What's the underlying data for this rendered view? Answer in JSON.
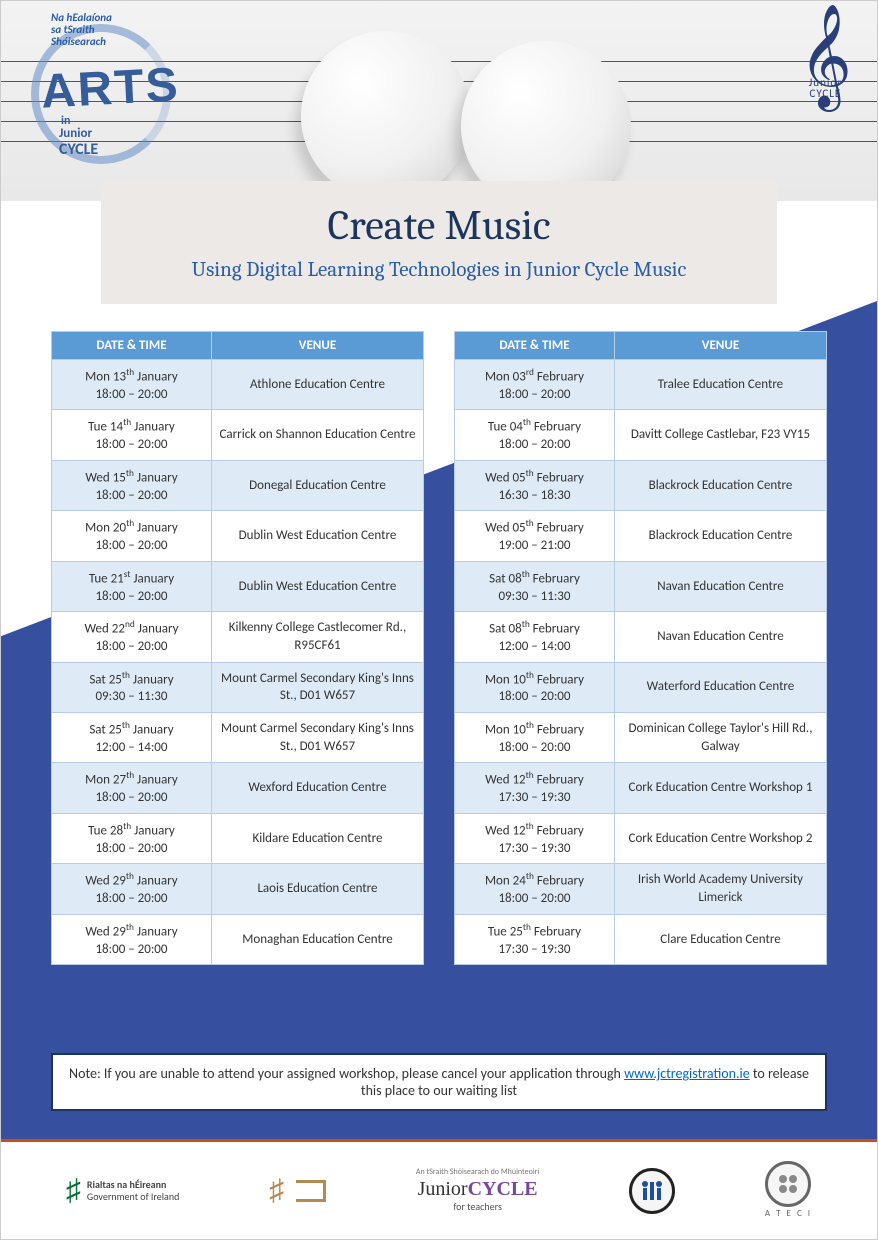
{
  "title": "Create Music",
  "subtitle": "Using Digital Learning Technologies in Junior Cycle Music",
  "columns": {
    "datetime": "DATE & TIME",
    "venue": "VENUE"
  },
  "left_table": [
    {
      "day": "Mon",
      "num": "13",
      "ord": "th",
      "month": "January",
      "time": "18:00 – 20:00",
      "venue": "Athlone Education Centre"
    },
    {
      "day": "Tue",
      "num": "14",
      "ord": "th",
      "month": "January",
      "time": "18:00 – 20:00",
      "venue": "Carrick on Shannon Education Centre"
    },
    {
      "day": "Wed",
      "num": "15",
      "ord": "th",
      "month": "January",
      "time": "18:00 – 20:00",
      "venue": "Donegal Education Centre"
    },
    {
      "day": "Mon",
      "num": "20",
      "ord": "th",
      "month": "January",
      "time": "18:00 – 20:00",
      "venue": "Dublin West Education Centre"
    },
    {
      "day": "Tue",
      "num": "21",
      "ord": "st",
      "month": "January",
      "time": "18:00 – 20:00",
      "venue": "Dublin West Education Centre"
    },
    {
      "day": "Wed",
      "num": "22",
      "ord": "nd",
      "month": "January",
      "time": "18:00 – 20:00",
      "venue": "Kilkenny College Castlecomer Rd., R95CF61"
    },
    {
      "day": "Sat",
      "num": "25",
      "ord": "th",
      "month": "January",
      "time": "09:30 – 11:30",
      "venue": "Mount Carmel Secondary King's Inns St., D01 W657"
    },
    {
      "day": "Sat",
      "num": "25",
      "ord": "th",
      "month": "January",
      "time": "12:00 – 14:00",
      "venue": "Mount Carmel Secondary King's Inns St., D01 W657"
    },
    {
      "day": "Mon",
      "num": "27",
      "ord": "th",
      "month": "January",
      "time": "18:00 – 20:00",
      "venue": "Wexford Education Centre"
    },
    {
      "day": "Tue",
      "num": "28",
      "ord": "th",
      "month": "January",
      "time": "18:00 – 20:00",
      "venue": "Kildare Education Centre"
    },
    {
      "day": "Wed",
      "num": "29",
      "ord": "th",
      "month": "January",
      "time": "18:00 – 20:00",
      "venue": "Laois Education Centre"
    },
    {
      "day": "Wed",
      "num": "29",
      "ord": "th",
      "month": "January",
      "time": "18:00 – 20:00",
      "venue": "Monaghan Education Centre"
    }
  ],
  "right_table": [
    {
      "day": "Mon",
      "num": "03",
      "ord": "rd",
      "month": "February",
      "time": "18:00 – 20:00",
      "venue": "Tralee Education Centre"
    },
    {
      "day": "Tue",
      "num": "04",
      "ord": "th",
      "month": "February",
      "time": "18:00 – 20:00",
      "venue": "Davitt College Castlebar, F23 VY15"
    },
    {
      "day": "Wed",
      "num": "05",
      "ord": "th",
      "month": "February",
      "time": "16:30 – 18:30",
      "venue": "Blackrock Education Centre"
    },
    {
      "day": "Wed",
      "num": "05",
      "ord": "th",
      "month": "February",
      "time": "19:00 – 21:00",
      "venue": "Blackrock Education Centre"
    },
    {
      "day": "Sat",
      "num": "08",
      "ord": "th",
      "month": "February",
      "time": "09:30 – 11:30",
      "venue": "Navan Education Centre"
    },
    {
      "day": "Sat",
      "num": "08",
      "ord": "th",
      "month": "February",
      "time": "12:00 – 14:00",
      "venue": "Navan Education Centre"
    },
    {
      "day": "Mon",
      "num": "10",
      "ord": "th",
      "month": "February",
      "time": "18:00 – 20:00",
      "venue": "Waterford Education Centre"
    },
    {
      "day": "Mon",
      "num": "10",
      "ord": "th",
      "month": "February",
      "time": "18:00 – 20:00",
      "venue": "Dominican College Taylor's Hill Rd., Galway"
    },
    {
      "day": "Wed",
      "num": "12",
      "ord": "th",
      "month": "February",
      "time": "17:30 – 19:30",
      "venue": "Cork Education Centre Workshop 1"
    },
    {
      "day": "Wed",
      "num": "12",
      "ord": "th",
      "month": "February",
      "time": "17:30 – 19:30",
      "venue": "Cork Education Centre Workshop 2"
    },
    {
      "day": "Mon",
      "num": "24",
      "ord": "th",
      "month": "February",
      "time": "18:00 – 20:00",
      "venue": "Irish World Academy University Limerick"
    },
    {
      "day": "Tue",
      "num": "25",
      "ord": "th",
      "month": "February",
      "time": "17:30 – 19:30",
      "venue": "Clare Education Centre"
    }
  ],
  "note": {
    "prefix": "Note: If you are unable to attend your assigned workshop, please cancel your application through ",
    "link_text": "www.jctregistration.ie",
    "suffix": " to release this place to our waiting list"
  },
  "footer": {
    "gov1_ie": "Rialtas na hÉireann",
    "gov1_en": "Government of Ireland",
    "jc_pre": "Junior",
    "jc_cyc": "CYCLE",
    "jc_sub": "for teachers",
    "jc_top": "An tSraith Shóisearach do Mhúinteoirí",
    "ateci": "A T E C I"
  },
  "arts_logo": {
    "top": "Na hEalaíona\nsa tSraith\nShóisearach",
    "arts": "ARTS",
    "in": "in",
    "junior": "Junior",
    "cycle": "CYCLE"
  },
  "clef_sub": "Junior\nCYCLE",
  "colors": {
    "header_bg": "#5b9bd5",
    "alt_row": "#deebf7",
    "title_color": "#1d355e",
    "subtitle_color": "#2a5ca8",
    "diag_blue": "#36509f"
  }
}
